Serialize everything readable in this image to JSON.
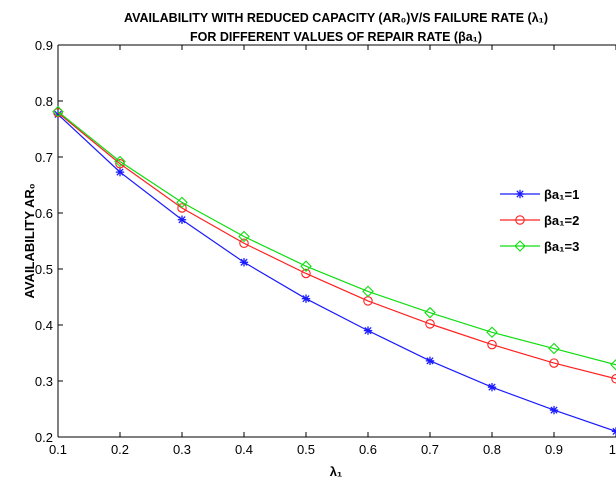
{
  "chart_data": {
    "type": "line",
    "title_lines": [
      "AVAILABILITY WITH REDUCED CAPACITY (AR₀)V/S FAILURE RATE (λ₁)",
      "FOR DIFFERENT VALUES OF REPAIR RATE (βa₁)"
    ],
    "xlabel": "λ₁",
    "ylabel": "AVAILABILITY AR₀",
    "xlim": [
      0.1,
      1.0
    ],
    "ylim": [
      0.2,
      0.9
    ],
    "x_ticks": [
      "0.1",
      "0.2",
      "0.3",
      "0.4",
      "0.5",
      "0.6",
      "0.7",
      "0.8",
      "0.9",
      "1"
    ],
    "y_ticks": [
      "0.2",
      "0.3",
      "0.4",
      "0.5",
      "0.6",
      "0.7",
      "0.8",
      "0.9"
    ],
    "grid": false,
    "legend_position": "right",
    "x": [
      0.1,
      0.2,
      0.3,
      0.4,
      0.5,
      0.6,
      0.7,
      0.8,
      0.9,
      1.0
    ],
    "series": [
      {
        "name": "βa₁=1",
        "color": "#1a1aff",
        "marker": "star",
        "values": [
          0.776,
          0.673,
          0.588,
          0.512,
          0.447,
          0.39,
          0.336,
          0.289,
          0.248,
          0.21
        ]
      },
      {
        "name": "βa₁=2",
        "color": "#ff2020",
        "marker": "circle",
        "values": [
          0.779,
          0.688,
          0.609,
          0.546,
          0.492,
          0.443,
          0.402,
          0.365,
          0.332,
          0.304
        ]
      },
      {
        "name": "βa₁=3",
        "color": "#11dd11",
        "marker": "diamond",
        "values": [
          0.781,
          0.692,
          0.619,
          0.558,
          0.505,
          0.46,
          0.422,
          0.387,
          0.358,
          0.329
        ]
      }
    ]
  }
}
